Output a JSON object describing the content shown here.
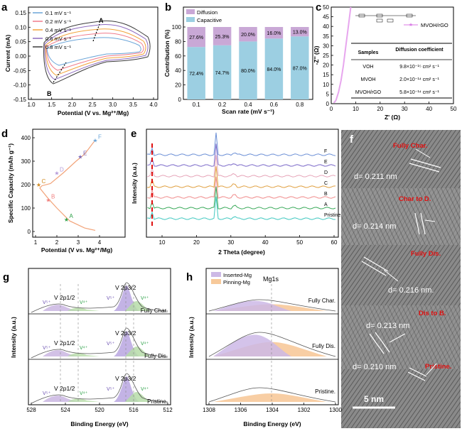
{
  "panels": {
    "a": {
      "label": "a",
      "ylabel": "Current (mA)",
      "xlabel": "Potential (V vs. Mg²⁺/Mg)",
      "xticks": [
        "1.0",
        "1.5",
        "2.0",
        "2.5",
        "3.0",
        "3.5",
        "4.0"
      ],
      "yticks": [
        "-0.15",
        "-0.10",
        "-0.05",
        "0.00",
        "0.05",
        "0.10",
        "0.15"
      ],
      "legend": [
        "0.1 mV s⁻¹",
        "0.2 mV s⁻¹",
        "0.4 mV s⁻¹",
        "0.6 mV s⁻¹",
        "0.8 mV s⁻¹"
      ],
      "colors": [
        "#6aa5d8",
        "#f07a8a",
        "#f2a23a",
        "#8e6bbf",
        "#3a3a3a"
      ],
      "peak_a": "A",
      "peak_b": "B"
    },
    "b": {
      "label": "b",
      "ylabel": "Contribution (%)",
      "xlabel": "Scan rate (mV s⁻¹)",
      "legend": [
        "Diffusion",
        "Capacitive"
      ],
      "yticks": [
        "0",
        "20",
        "40",
        "60",
        "80",
        "100"
      ]
    },
    "c": {
      "label": "c",
      "ylabel": "-Z'' (Ω)",
      "xlabel": "Z' (Ω)",
      "xticks": [
        "0",
        "10",
        "20",
        "30",
        "40",
        "50"
      ],
      "yticks": [
        "0",
        "5",
        "10",
        "15",
        "20",
        "25",
        "30",
        "35",
        "40",
        "45",
        "50"
      ],
      "legend": "MVOH/rGO",
      "table_header": [
        "Samples",
        "Diffusion coefficient"
      ],
      "table_rows": [
        [
          "VOH",
          "9.8×10⁻¹⁵ cm² s⁻¹"
        ],
        [
          "MVOH",
          "2.0×10⁻¹⁴ cm² s⁻¹"
        ],
        [
          "MVOH/rGO",
          "5.8×10⁻¹⁴ cm² s⁻¹"
        ]
      ]
    },
    "d": {
      "label": "d",
      "ylabel": "Specific Capacity (mAh g⁻¹)",
      "xlabel": "Potential (V vs. Mg²⁺/Mg)",
      "xticks": [
        "1",
        "2",
        "3",
        "4"
      ],
      "yticks": [
        "0",
        "100",
        "200",
        "300",
        "400"
      ],
      "points": [
        "A",
        "B",
        "C",
        "D",
        "E",
        "F"
      ]
    },
    "e": {
      "label": "e",
      "ylabel": "Intensity (a.u.)",
      "xlabel": "2 Theta (degree)",
      "xticks": [
        "10",
        "20",
        "30",
        "40",
        "50",
        "60"
      ],
      "traces": [
        "F",
        "E",
        "D",
        "C",
        "B",
        "A",
        "Pristine"
      ]
    },
    "f": {
      "label": "f",
      "states": [
        "Fully Char.",
        "Char to D.",
        "Fully Dis.",
        "Dis to B.",
        "Pristine."
      ],
      "d_spacings": [
        "d= 0.211 nm",
        "d= 0.214 nm",
        "d= 0.216 nm.",
        "d= 0.213 nm",
        "d= 0.210 nm"
      ],
      "scalebar": "5 nm"
    },
    "g": {
      "label": "g",
      "ylabel": "Intensity (a.u.)",
      "xlabel": "Binding Energy (eV)",
      "xticks": [
        "528",
        "524",
        "520",
        "516",
        "512"
      ],
      "peak_v2p32": "V 2p3/2",
      "peak_v2p12": "V 2p1/2",
      "v5": "V⁵⁺",
      "v4": "V⁴⁺",
      "states": [
        "Fully Char.",
        "Fully Dis.",
        "Pristine."
      ]
    },
    "h": {
      "label": "h",
      "ylabel": "Intensity (a.u.)",
      "xlabel": "Binding Energy (eV)",
      "xticks": [
        "1308",
        "1306",
        "1304",
        "1302",
        "1300"
      ],
      "legend": [
        "Inserted-Mg",
        "Pinning-Mg"
      ],
      "peak": "Mg1s",
      "states": [
        "Fully Char.",
        "Fully Dis.",
        "Pristine."
      ]
    }
  },
  "chart_data": [
    {
      "type": "bar",
      "panel": "b",
      "title": "",
      "xlabel": "Scan rate (mV s⁻¹)",
      "ylabel": "Contribution (%)",
      "categories": [
        "0.1",
        "0.2",
        "0.4",
        "0.6",
        "0.8"
      ],
      "series": [
        {
          "name": "Capacitive",
          "values": [
            72.4,
            74.7,
            80.0,
            84.0,
            87.0
          ],
          "labels": [
            "72.4%",
            "74.7%",
            "80.0%",
            "84.0%",
            "87.0%"
          ]
        },
        {
          "name": "Diffusion",
          "values": [
            27.6,
            25.3,
            20.0,
            16.0,
            13.0
          ],
          "labels": [
            "27.6%",
            "25.3%",
            "20.0%",
            "16.0%",
            "13.0%"
          ]
        }
      ],
      "ylim": [
        0,
        100
      ],
      "colors": {
        "Capacitive": "#9ccfe2",
        "Diffusion": "#c9a8d6"
      }
    },
    {
      "type": "line",
      "panel": "d",
      "xlabel": "Potential (V vs. Mg²⁺/Mg)",
      "ylabel": "Specific Capacity (mAh g⁻¹)",
      "series": [
        {
          "name": "",
          "x": [
            3.8,
            3.3,
            2.6,
            2.0,
            1.6,
            1.2,
            1.3,
            1.7,
            2.3,
            2.9,
            3.3,
            3.8
          ],
          "y": [
            5,
            15,
            45,
            100,
            140,
            185,
            195,
            205,
            250,
            300,
            330,
            390
          ]
        }
      ],
      "points": [
        {
          "label": "A",
          "x": 2.45,
          "y": 52
        },
        {
          "label": "B",
          "x": 1.6,
          "y": 135
        },
        {
          "label": "C",
          "x": 1.15,
          "y": 200
        },
        {
          "label": "D",
          "x": 2.0,
          "y": 250
        },
        {
          "label": "E",
          "x": 3.1,
          "y": 320
        },
        {
          "label": "F",
          "x": 3.8,
          "y": 390
        }
      ],
      "xlim": [
        1,
        4.5
      ],
      "ylim": [
        0,
        450
      ]
    },
    {
      "type": "line",
      "panel": "c",
      "xlabel": "Z' (Ω)",
      "ylabel": "-Z'' (Ω)",
      "series": [
        {
          "name": "MVOH/rGO",
          "x": [
            1,
            1.5,
            2,
            3,
            4,
            5,
            6,
            7,
            8
          ],
          "y": [
            0.5,
            1,
            2,
            6,
            12,
            20,
            30,
            40,
            50
          ]
        }
      ],
      "xlim": [
        0,
        50
      ],
      "ylim": [
        0,
        50
      ]
    }
  ]
}
